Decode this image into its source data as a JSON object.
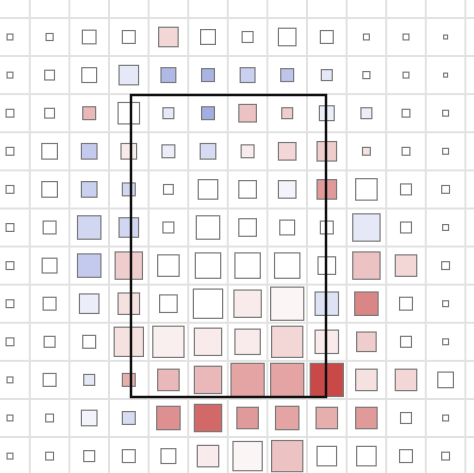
{
  "chart_data": {
    "type": "heatmap",
    "low_color": "#7b8ad6",
    "mid_color": "#ffffff",
    "high_color": "#c33535",
    "values": [
      [
        0,
        0,
        0,
        0,
        0.2,
        0,
        0,
        0,
        0,
        0,
        0,
        0
      ],
      [
        0,
        0,
        0,
        -0.2,
        -0.6,
        -0.65,
        -0.4,
        -0.5,
        -0.2,
        0,
        0,
        0
      ],
      [
        0,
        0,
        0.35,
        0,
        -0.2,
        -0.7,
        0.3,
        0.25,
        -0.15,
        -0.15,
        0,
        0
      ],
      [
        0,
        0,
        -0.45,
        0.1,
        -0.15,
        -0.3,
        0.1,
        0.2,
        0.25,
        0.15,
        0,
        0
      ],
      [
        0,
        0,
        -0.4,
        -0.35,
        0,
        0,
        0,
        -0.1,
        0.5,
        0,
        0,
        0
      ],
      [
        0,
        0,
        -0.35,
        -0.35,
        0,
        0,
        0,
        0,
        0,
        -0.2,
        0,
        0
      ],
      [
        0,
        0,
        -0.45,
        0.25,
        0,
        0,
        0,
        0,
        0,
        0.3,
        0.2,
        0
      ],
      [
        0,
        0,
        -0.15,
        0.15,
        0,
        0,
        0.1,
        0.05,
        -0.25,
        0.6,
        0,
        0
      ],
      [
        0,
        0,
        0,
        0.15,
        0.08,
        0.1,
        0.1,
        0.2,
        0.1,
        0.25,
        0,
        0
      ],
      [
        0,
        0,
        -0.2,
        0.4,
        0.35,
        0.35,
        0.45,
        0.45,
        0.9,
        0.15,
        0.2,
        0
      ],
      [
        0,
        0,
        -0.1,
        -0.3,
        0.55,
        0.75,
        0.5,
        0.45,
        0.4,
        0.5,
        0,
        0
      ],
      [
        0,
        0,
        0,
        0,
        0,
        0.1,
        0.05,
        0.3,
        0,
        0,
        0,
        0
      ]
    ],
    "sizes": [
      [
        0.15,
        0.18,
        0.35,
        0.33,
        0.5,
        0.38,
        0.28,
        0.45,
        0.33,
        0.15,
        0.15,
        0.1
      ],
      [
        0.15,
        0.25,
        0.38,
        0.5,
        0.38,
        0.33,
        0.38,
        0.33,
        0.28,
        0.18,
        0.15,
        0.1
      ],
      [
        0.2,
        0.25,
        0.33,
        0.55,
        0.28,
        0.33,
        0.45,
        0.28,
        0.38,
        0.28,
        0.2,
        0.15
      ],
      [
        0.2,
        0.4,
        0.4,
        0.4,
        0.33,
        0.4,
        0.33,
        0.45,
        0.5,
        0.2,
        0.2,
        0.15
      ],
      [
        0.2,
        0.4,
        0.4,
        0.33,
        0.25,
        0.5,
        0.45,
        0.45,
        0.5,
        0.55,
        0.28,
        0.2
      ],
      [
        0.2,
        0.33,
        0.6,
        0.5,
        0.28,
        0.6,
        0.45,
        0.38,
        0.33,
        0.7,
        0.28,
        0.15
      ],
      [
        0.2,
        0.38,
        0.6,
        0.7,
        0.55,
        0.65,
        0.65,
        0.65,
        0.45,
        0.7,
        0.55,
        0.2
      ],
      [
        0.2,
        0.33,
        0.5,
        0.55,
        0.45,
        0.75,
        0.7,
        0.85,
        0.6,
        0.6,
        0.33,
        0.15
      ],
      [
        0.2,
        0.28,
        0.33,
        0.75,
        0.8,
        0.7,
        0.65,
        0.8,
        0.6,
        0.5,
        0.28,
        0.15
      ],
      [
        0.15,
        0.33,
        0.28,
        0.33,
        0.55,
        0.7,
        0.85,
        0.85,
        0.85,
        0.55,
        0.55,
        0.4
      ],
      [
        0.15,
        0.2,
        0.4,
        0.33,
        0.6,
        0.7,
        0.55,
        0.6,
        0.55,
        0.55,
        0.28,
        0.15
      ],
      [
        0.15,
        0.2,
        0.28,
        0.33,
        0.38,
        0.55,
        0.75,
        0.8,
        0.5,
        0.5,
        0.33,
        0.2
      ]
    ]
  }
}
